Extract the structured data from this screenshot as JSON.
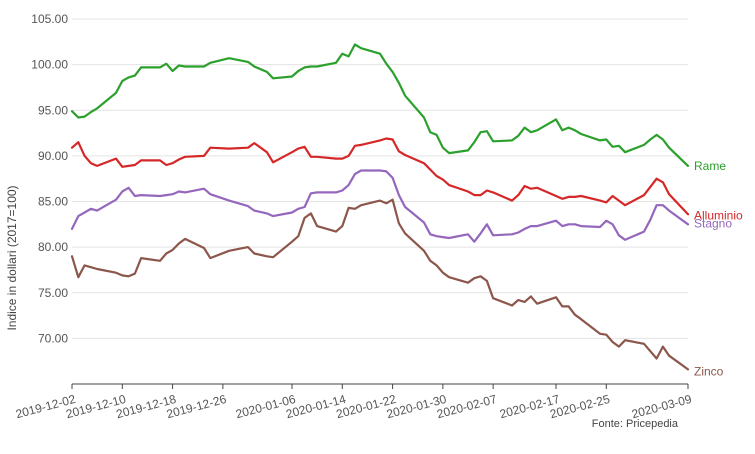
{
  "chart_data": {
    "type": "line",
    "title": "",
    "xlabel": "",
    "ylabel": "Indice in dollari (2017=100)",
    "ylim": [
      65,
      105
    ],
    "yticks": [
      70,
      75,
      80,
      85,
      90,
      95,
      100,
      105
    ],
    "ytick_labels": [
      "70.00",
      "75.00",
      "80.00",
      "85.00",
      "90.00",
      "95.00",
      "100.00",
      "105.00"
    ],
    "xlim": [
      "2019-12-02",
      "2020-03-09"
    ],
    "xticks": [
      "2019-12-02",
      "2019-12-10",
      "2019-12-18",
      "2019-12-26",
      "2020-01-06",
      "2020-01-14",
      "2020-01-22",
      "2020-01-30",
      "2020-02-07",
      "2020-02-17",
      "2020-02-25",
      "2020-03-09"
    ],
    "grid": "horizontal",
    "legend": "labels at series end (right)",
    "source": "Fonte: Pricepedia",
    "series": [
      {
        "name": "Rame",
        "color": "#2ca02c",
        "points": [
          [
            "2019-12-02",
            94.9
          ],
          [
            "2019-12-03",
            94.2
          ],
          [
            "2019-12-04",
            94.3
          ],
          [
            "2019-12-05",
            94.8
          ],
          [
            "2019-12-06",
            95.2
          ],
          [
            "2019-12-09",
            96.9
          ],
          [
            "2019-12-10",
            98.2
          ],
          [
            "2019-12-11",
            98.6
          ],
          [
            "2019-12-12",
            98.8
          ],
          [
            "2019-12-13",
            99.7
          ],
          [
            "2019-12-16",
            99.7
          ],
          [
            "2019-12-17",
            100.1
          ],
          [
            "2019-12-18",
            99.3
          ],
          [
            "2019-12-19",
            99.9
          ],
          [
            "2019-12-20",
            99.8
          ],
          [
            "2019-12-23",
            99.8
          ],
          [
            "2019-12-24",
            100.2
          ],
          [
            "2019-12-27",
            100.7
          ],
          [
            "2019-12-30",
            100.3
          ],
          [
            "2019-12-31",
            99.8
          ],
          [
            "2020-01-02",
            99.2
          ],
          [
            "2020-01-03",
            98.5
          ],
          [
            "2020-01-06",
            98.7
          ],
          [
            "2020-01-07",
            99.3
          ],
          [
            "2020-01-08",
            99.7
          ],
          [
            "2020-01-09",
            99.8
          ],
          [
            "2020-01-10",
            99.8
          ],
          [
            "2020-01-13",
            100.2
          ],
          [
            "2020-01-14",
            101.2
          ],
          [
            "2020-01-15",
            100.9
          ],
          [
            "2020-01-16",
            102.2
          ],
          [
            "2020-01-17",
            101.8
          ],
          [
            "2020-01-20",
            101.2
          ],
          [
            "2020-01-21",
            100.1
          ],
          [
            "2020-01-22",
            99.2
          ],
          [
            "2020-01-23",
            98.0
          ],
          [
            "2020-01-24",
            96.6
          ],
          [
            "2020-01-27",
            94.2
          ],
          [
            "2020-01-28",
            92.6
          ],
          [
            "2020-01-29",
            92.3
          ],
          [
            "2020-01-30",
            90.9
          ],
          [
            "2020-01-31",
            90.3
          ],
          [
            "2020-02-03",
            90.6
          ],
          [
            "2020-02-04",
            91.5
          ],
          [
            "2020-02-05",
            92.6
          ],
          [
            "2020-02-06",
            92.7
          ],
          [
            "2020-02-07",
            91.6
          ],
          [
            "2020-02-10",
            91.7
          ],
          [
            "2020-02-11",
            92.2
          ],
          [
            "2020-02-12",
            93.1
          ],
          [
            "2020-02-13",
            92.6
          ],
          [
            "2020-02-14",
            92.8
          ],
          [
            "2020-02-17",
            94.0
          ],
          [
            "2020-02-18",
            92.8
          ],
          [
            "2020-02-19",
            93.1
          ],
          [
            "2020-02-20",
            92.8
          ],
          [
            "2020-02-21",
            92.4
          ],
          [
            "2020-02-24",
            91.7
          ],
          [
            "2020-02-25",
            91.8
          ],
          [
            "2020-02-26",
            91.0
          ],
          [
            "2020-02-27",
            91.1
          ],
          [
            "2020-02-28",
            90.4
          ],
          [
            "2020-03-02",
            91.2
          ],
          [
            "2020-03-03",
            91.8
          ],
          [
            "2020-03-04",
            92.3
          ],
          [
            "2020-03-05",
            91.8
          ],
          [
            "2020-03-06",
            90.9
          ],
          [
            "2020-03-09",
            88.9
          ]
        ]
      },
      {
        "name": "Alluminio",
        "color": "#d62728",
        "points": [
          [
            "2019-12-02",
            90.9
          ],
          [
            "2019-12-03",
            91.5
          ],
          [
            "2019-12-04",
            90.0
          ],
          [
            "2019-12-05",
            89.2
          ],
          [
            "2019-12-06",
            88.9
          ],
          [
            "2019-12-09",
            89.7
          ],
          [
            "2019-12-10",
            88.8
          ],
          [
            "2019-12-11",
            88.9
          ],
          [
            "2019-12-12",
            89.0
          ],
          [
            "2019-12-13",
            89.5
          ],
          [
            "2019-12-16",
            89.5
          ],
          [
            "2019-12-17",
            89.0
          ],
          [
            "2019-12-18",
            89.2
          ],
          [
            "2019-12-19",
            89.6
          ],
          [
            "2019-12-20",
            89.9
          ],
          [
            "2019-12-23",
            90.0
          ],
          [
            "2019-12-24",
            90.9
          ],
          [
            "2019-12-27",
            90.8
          ],
          [
            "2019-12-30",
            90.9
          ],
          [
            "2019-12-31",
            91.4
          ],
          [
            "2020-01-02",
            90.4
          ],
          [
            "2020-01-03",
            89.3
          ],
          [
            "2020-01-06",
            90.4
          ],
          [
            "2020-01-07",
            90.8
          ],
          [
            "2020-01-08",
            91.0
          ],
          [
            "2020-01-09",
            89.9
          ],
          [
            "2020-01-10",
            89.9
          ],
          [
            "2020-01-13",
            89.7
          ],
          [
            "2020-01-14",
            89.7
          ],
          [
            "2020-01-15",
            90.0
          ],
          [
            "2020-01-16",
            91.1
          ],
          [
            "2020-01-17",
            91.2
          ],
          [
            "2020-01-20",
            91.7
          ],
          [
            "2020-01-21",
            91.9
          ],
          [
            "2020-01-22",
            91.8
          ],
          [
            "2020-01-23",
            90.5
          ],
          [
            "2020-01-24",
            90.1
          ],
          [
            "2020-01-27",
            89.2
          ],
          [
            "2020-01-28",
            88.5
          ],
          [
            "2020-01-29",
            87.8
          ],
          [
            "2020-01-30",
            87.4
          ],
          [
            "2020-01-31",
            86.8
          ],
          [
            "2020-02-03",
            86.1
          ],
          [
            "2020-02-04",
            85.7
          ],
          [
            "2020-02-05",
            85.7
          ],
          [
            "2020-02-06",
            86.2
          ],
          [
            "2020-02-07",
            86.0
          ],
          [
            "2020-02-10",
            85.1
          ],
          [
            "2020-02-11",
            85.7
          ],
          [
            "2020-02-12",
            86.7
          ],
          [
            "2020-02-13",
            86.4
          ],
          [
            "2020-02-14",
            86.5
          ],
          [
            "2020-02-17",
            85.6
          ],
          [
            "2020-02-18",
            85.3
          ],
          [
            "2020-02-19",
            85.5
          ],
          [
            "2020-02-20",
            85.5
          ],
          [
            "2020-02-21",
            85.6
          ],
          [
            "2020-02-24",
            85.1
          ],
          [
            "2020-02-25",
            84.9
          ],
          [
            "2020-02-26",
            85.6
          ],
          [
            "2020-02-27",
            85.1
          ],
          [
            "2020-02-28",
            84.6
          ],
          [
            "2020-03-02",
            85.7
          ],
          [
            "2020-03-03",
            86.6
          ],
          [
            "2020-03-04",
            87.5
          ],
          [
            "2020-03-05",
            87.1
          ],
          [
            "2020-03-06",
            85.8
          ],
          [
            "2020-03-09",
            83.6
          ]
        ]
      },
      {
        "name": "Stagno",
        "color": "#9467bd",
        "points": [
          [
            "2019-12-02",
            82.0
          ],
          [
            "2019-12-03",
            83.4
          ],
          [
            "2019-12-04",
            83.8
          ],
          [
            "2019-12-05",
            84.2
          ],
          [
            "2019-12-06",
            84.0
          ],
          [
            "2019-12-09",
            85.2
          ],
          [
            "2019-12-10",
            86.1
          ],
          [
            "2019-12-11",
            86.5
          ],
          [
            "2019-12-12",
            85.6
          ],
          [
            "2019-12-13",
            85.7
          ],
          [
            "2019-12-16",
            85.6
          ],
          [
            "2019-12-17",
            85.7
          ],
          [
            "2019-12-18",
            85.8
          ],
          [
            "2019-12-19",
            86.1
          ],
          [
            "2019-12-20",
            86.0
          ],
          [
            "2019-12-23",
            86.4
          ],
          [
            "2019-12-24",
            85.8
          ],
          [
            "2019-12-27",
            85.1
          ],
          [
            "2019-12-30",
            84.5
          ],
          [
            "2019-12-31",
            84.0
          ],
          [
            "2020-01-02",
            83.7
          ],
          [
            "2020-01-03",
            83.4
          ],
          [
            "2020-01-06",
            83.8
          ],
          [
            "2020-01-07",
            84.2
          ],
          [
            "2020-01-08",
            84.4
          ],
          [
            "2020-01-09",
            85.9
          ],
          [
            "2020-01-10",
            86.0
          ],
          [
            "2020-01-13",
            86.0
          ],
          [
            "2020-01-14",
            86.2
          ],
          [
            "2020-01-15",
            86.8
          ],
          [
            "2020-01-16",
            88.0
          ],
          [
            "2020-01-17",
            88.4
          ],
          [
            "2020-01-20",
            88.4
          ],
          [
            "2020-01-21",
            88.3
          ],
          [
            "2020-01-22",
            87.6
          ],
          [
            "2020-01-23",
            85.7
          ],
          [
            "2020-01-24",
            84.4
          ],
          [
            "2020-01-27",
            82.7
          ],
          [
            "2020-01-28",
            81.4
          ],
          [
            "2020-01-29",
            81.2
          ],
          [
            "2020-01-30",
            81.1
          ],
          [
            "2020-01-31",
            81.0
          ],
          [
            "2020-02-03",
            81.4
          ],
          [
            "2020-02-04",
            80.6
          ],
          [
            "2020-02-05",
            81.5
          ],
          [
            "2020-02-06",
            82.5
          ],
          [
            "2020-02-07",
            81.3
          ],
          [
            "2020-02-10",
            81.4
          ],
          [
            "2020-02-11",
            81.6
          ],
          [
            "2020-02-12",
            82.0
          ],
          [
            "2020-02-13",
            82.3
          ],
          [
            "2020-02-14",
            82.3
          ],
          [
            "2020-02-17",
            82.9
          ],
          [
            "2020-02-18",
            82.3
          ],
          [
            "2020-02-19",
            82.5
          ],
          [
            "2020-02-20",
            82.5
          ],
          [
            "2020-02-21",
            82.3
          ],
          [
            "2020-02-24",
            82.2
          ],
          [
            "2020-02-25",
            82.9
          ],
          [
            "2020-02-26",
            82.5
          ],
          [
            "2020-02-27",
            81.3
          ],
          [
            "2020-02-28",
            80.8
          ],
          [
            "2020-03-02",
            81.7
          ],
          [
            "2020-03-03",
            83.0
          ],
          [
            "2020-03-04",
            84.6
          ],
          [
            "2020-03-05",
            84.6
          ],
          [
            "2020-03-06",
            84.0
          ],
          [
            "2020-03-09",
            82.5
          ]
        ]
      },
      {
        "name": "Zinco",
        "color": "#8c564b",
        "points": [
          [
            "2019-12-02",
            79.0
          ],
          [
            "2019-12-03",
            76.7
          ],
          [
            "2019-12-04",
            78.0
          ],
          [
            "2019-12-05",
            77.8
          ],
          [
            "2019-12-06",
            77.6
          ],
          [
            "2019-12-09",
            77.2
          ],
          [
            "2019-12-10",
            76.9
          ],
          [
            "2019-12-11",
            76.8
          ],
          [
            "2019-12-12",
            77.1
          ],
          [
            "2019-12-13",
            78.8
          ],
          [
            "2019-12-16",
            78.5
          ],
          [
            "2019-12-17",
            79.3
          ],
          [
            "2019-12-18",
            79.7
          ],
          [
            "2019-12-19",
            80.4
          ],
          [
            "2019-12-20",
            80.9
          ],
          [
            "2019-12-23",
            79.9
          ],
          [
            "2019-12-24",
            78.8
          ],
          [
            "2019-12-27",
            79.6
          ],
          [
            "2019-12-30",
            80.0
          ],
          [
            "2019-12-31",
            79.3
          ],
          [
            "2020-01-02",
            79.0
          ],
          [
            "2020-01-03",
            78.9
          ],
          [
            "2020-01-06",
            80.6
          ],
          [
            "2020-01-07",
            81.2
          ],
          [
            "2020-01-08",
            83.2
          ],
          [
            "2020-01-09",
            83.7
          ],
          [
            "2020-01-10",
            82.3
          ],
          [
            "2020-01-13",
            81.7
          ],
          [
            "2020-01-14",
            82.3
          ],
          [
            "2020-01-15",
            84.3
          ],
          [
            "2020-01-16",
            84.2
          ],
          [
            "2020-01-17",
            84.6
          ],
          [
            "2020-01-20",
            85.1
          ],
          [
            "2020-01-21",
            84.8
          ],
          [
            "2020-01-22",
            85.2
          ],
          [
            "2020-01-23",
            82.6
          ],
          [
            "2020-01-24",
            81.5
          ],
          [
            "2020-01-27",
            79.6
          ],
          [
            "2020-01-28",
            78.5
          ],
          [
            "2020-01-29",
            78.0
          ],
          [
            "2020-01-30",
            77.2
          ],
          [
            "2020-01-31",
            76.7
          ],
          [
            "2020-02-03",
            76.1
          ],
          [
            "2020-02-04",
            76.6
          ],
          [
            "2020-02-05",
            76.8
          ],
          [
            "2020-02-06",
            76.3
          ],
          [
            "2020-02-07",
            74.4
          ],
          [
            "2020-02-10",
            73.6
          ],
          [
            "2020-02-11",
            74.2
          ],
          [
            "2020-02-12",
            74.0
          ],
          [
            "2020-02-13",
            74.6
          ],
          [
            "2020-02-14",
            73.8
          ],
          [
            "2020-02-17",
            74.5
          ],
          [
            "2020-02-18",
            73.5
          ],
          [
            "2020-02-19",
            73.5
          ],
          [
            "2020-02-20",
            72.6
          ],
          [
            "2020-02-21",
            72.1
          ],
          [
            "2020-02-24",
            70.5
          ],
          [
            "2020-02-25",
            70.4
          ],
          [
            "2020-02-26",
            69.6
          ],
          [
            "2020-02-27",
            69.1
          ],
          [
            "2020-02-28",
            69.8
          ],
          [
            "2020-03-02",
            69.4
          ],
          [
            "2020-03-03",
            68.6
          ],
          [
            "2020-03-04",
            67.8
          ],
          [
            "2020-03-05",
            69.1
          ],
          [
            "2020-03-06",
            68.1
          ],
          [
            "2020-03-09",
            66.6
          ]
        ]
      }
    ]
  }
}
